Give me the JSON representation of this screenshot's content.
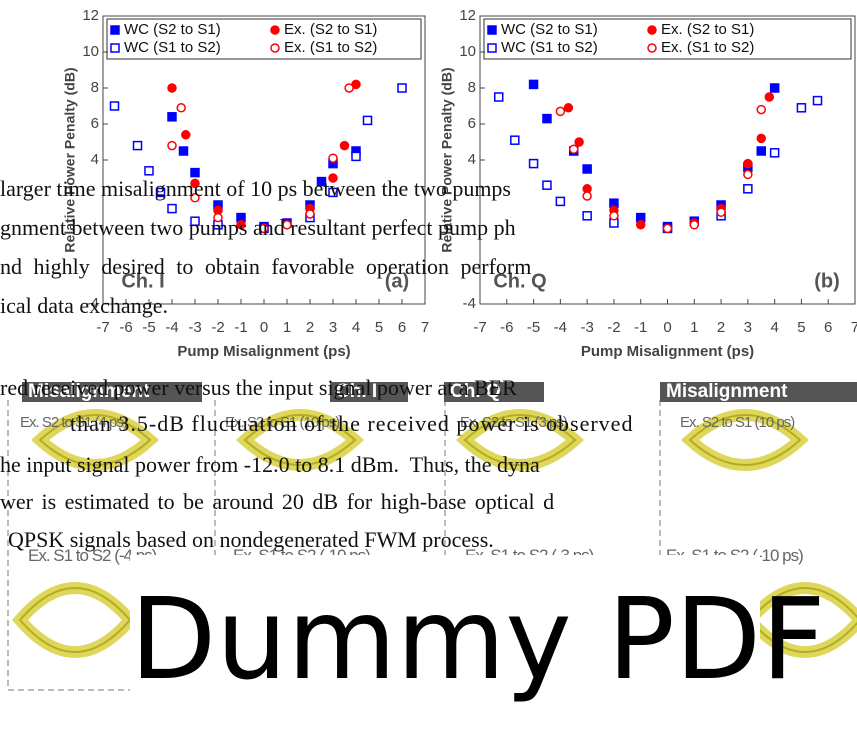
{
  "chart_data": [
    {
      "type": "scatter",
      "ylabel": "Relative Power Penalty (dB)",
      "xlabel": "Pump Misalignment (ps)",
      "panel_label": "(a)",
      "channel_label": "Ch. I",
      "xlim": [
        -7,
        7
      ],
      "ylim": [
        -4,
        12
      ],
      "xticks": [
        -7,
        -6,
        -5,
        -4,
        -3,
        -2,
        -1,
        0,
        1,
        2,
        3,
        4,
        5,
        6,
        7
      ],
      "yticks": [
        -4,
        4,
        6,
        8,
        10,
        12
      ],
      "series": [
        {
          "name": "WC (S2 to S1)",
          "color": "#0000ff",
          "marker": "filled-square",
          "x": [
            -4,
            -3.5,
            -3,
            -2,
            -1,
            0,
            1,
            2,
            2.5,
            3,
            4
          ],
          "values": [
            6.4,
            4.5,
            3.3,
            1.5,
            0.8,
            0.3,
            0.5,
            1.5,
            2.8,
            3.8,
            4.5
          ]
        },
        {
          "name": "Ex. (S2 to S1)",
          "color": "#ff0000",
          "marker": "filled-circle",
          "x": [
            -4,
            -3.4,
            -3,
            -2,
            -1,
            0,
            1,
            2,
            3,
            3.5,
            4
          ],
          "values": [
            8.0,
            5.4,
            2.7,
            1.2,
            0.4,
            0.2,
            0.4,
            1.3,
            3.0,
            4.8,
            8.2
          ]
        },
        {
          "name": "WC (S1 to S2)",
          "color": "#0000ff",
          "marker": "open-square",
          "x": [
            -6.5,
            -5.5,
            -5,
            -4.5,
            -4,
            -3,
            -2,
            0,
            2,
            3,
            4,
            4.5,
            6
          ],
          "values": [
            7.0,
            4.8,
            3.4,
            2.2,
            1.3,
            0.6,
            0.4,
            0.2,
            0.8,
            2.2,
            4.2,
            6.2,
            8.0
          ]
        },
        {
          "name": "Ex. (S1 to S2)",
          "color": "#ff0000",
          "marker": "open-circle",
          "x": [
            -3.6,
            -4,
            -3,
            -2,
            0,
            1,
            2,
            3,
            3.7
          ],
          "values": [
            6.9,
            4.8,
            1.9,
            0.8,
            0.2,
            0.4,
            1.0,
            4.1,
            8.0
          ]
        }
      ]
    },
    {
      "type": "scatter",
      "ylabel": "Relative Power Penalty (dB)",
      "xlabel": "Pump Misalignment (ps)",
      "panel_label": "(b)",
      "channel_label": "Ch. Q",
      "xlim": [
        -7,
        7
      ],
      "ylim": [
        -4,
        12
      ],
      "xticks": [
        -7,
        -6,
        -5,
        -4,
        -3,
        -2,
        -1,
        0,
        1,
        2,
        3,
        4,
        5,
        6,
        7
      ],
      "yticks": [
        -4,
        4,
        6,
        8,
        10,
        12
      ],
      "series": [
        {
          "name": "WC (S2 to S1)",
          "color": "#0000ff",
          "marker": "filled-square",
          "x": [
            -5,
            -4.5,
            -3.5,
            -3,
            -2,
            -1,
            0,
            1,
            2,
            3,
            3.5,
            4
          ],
          "values": [
            8.2,
            6.3,
            4.5,
            3.5,
            1.6,
            0.8,
            0.3,
            0.6,
            1.5,
            3.6,
            4.5,
            8.0
          ]
        },
        {
          "name": "Ex. (S2 to S1)",
          "color": "#ff0000",
          "marker": "filled-circle",
          "x": [
            -3.7,
            -3.3,
            -3,
            -2,
            -1,
            0,
            1,
            2,
            3,
            3.5,
            3.8
          ],
          "values": [
            6.9,
            5.0,
            2.4,
            1.2,
            0.4,
            0.2,
            0.5,
            1.3,
            3.8,
            5.2,
            7.5
          ]
        },
        {
          "name": "WC (S1 to S2)",
          "color": "#0000ff",
          "marker": "open-square",
          "x": [
            -6.3,
            -5.7,
            -5,
            -4.5,
            -4,
            -3,
            -2,
            0,
            2,
            3,
            4,
            5,
            5.6
          ],
          "values": [
            7.5,
            5.1,
            3.8,
            2.6,
            1.7,
            0.9,
            0.5,
            0.2,
            0.9,
            2.4,
            4.4,
            6.9,
            7.3
          ]
        },
        {
          "name": "Ex. (S1 to S2)",
          "color": "#ff0000",
          "marker": "open-circle",
          "x": [
            -4,
            -3.5,
            -3,
            -2,
            0,
            1,
            2,
            3,
            3.5
          ],
          "values": [
            6.7,
            4.6,
            2.0,
            0.9,
            0.2,
            0.4,
            1.1,
            3.2,
            6.8
          ]
        }
      ]
    }
  ],
  "paragraph_top": [
    "larger time misalignment of 10 ps between the two pumps",
    "gnment between two pumps and resultant perfect pump ph",
    "nd highly desired to obtain favorable operation perform",
    "ical data exchange."
  ],
  "eye_labels": [
    "Misalignment",
    "Ch. I",
    "Ch. Q",
    "Misalignment"
  ],
  "eye_captions_top": [
    "Ex. S2 to S1 (4 ps)",
    "Ex. S2 to S1 (10 ps)",
    "Ex. S2 to S1 (3 ps)",
    "Ex. S2 to S1 (10 ps)"
  ],
  "eye_captions_bottom": [
    "Ex. S1 to S2 (-4 ps)",
    "Ex. S1 to S2 (-10 ps)",
    "Ex. S1 to S2 (-3 ps)",
    "Ex. S1 to S2 (-10 ps)"
  ],
  "paragraph_bottom": [
    "red received power versus the input signal power at a BER",
    "than 3.5-dB fluctuation of the received power is observed",
    "he input signal power from -12.0 to 8.1 dBm.  Thus, the dyna",
    "wer is estimated to be around 20 dB for high-base optical d",
    "QPSK signals based on nondegenerated FWM process."
  ],
  "watermark": "Dummy PDF"
}
